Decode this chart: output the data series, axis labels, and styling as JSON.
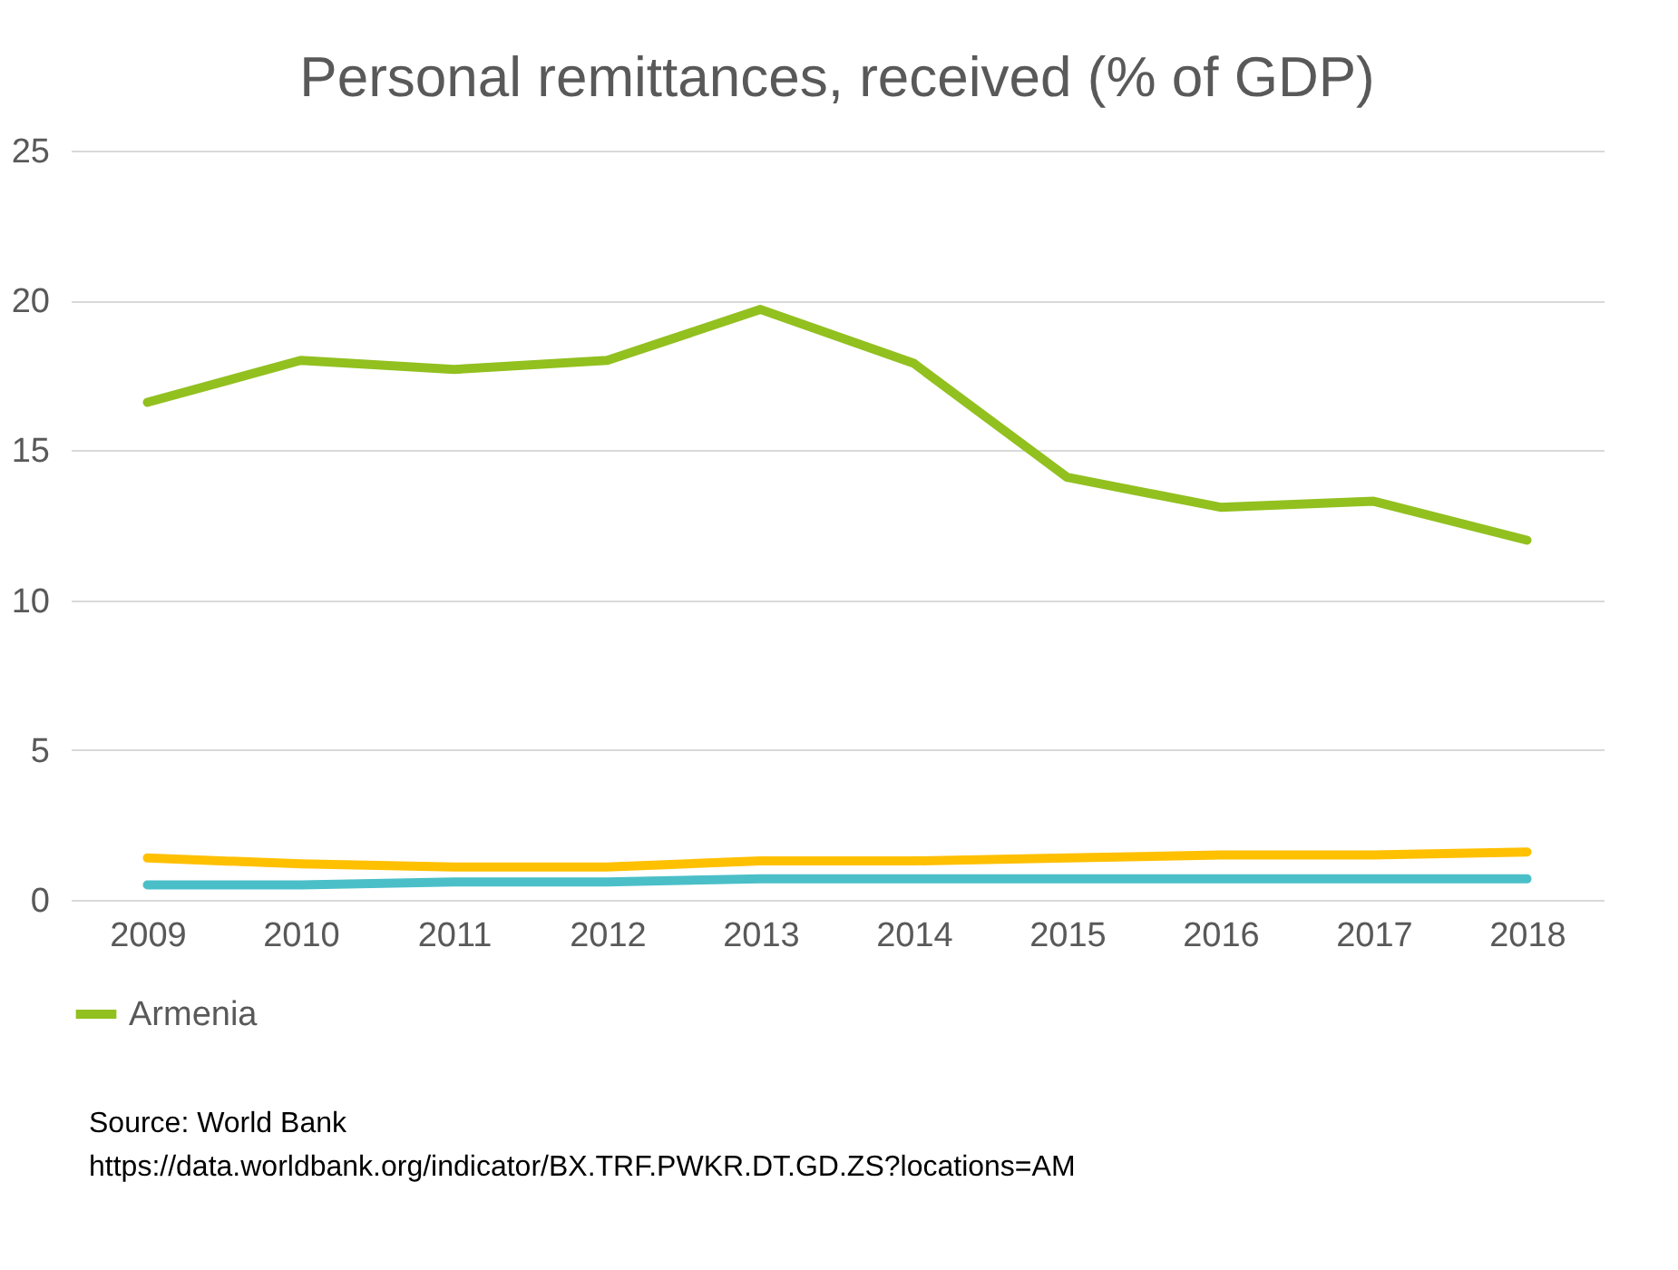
{
  "chart_data": {
    "type": "line",
    "title": "Personal remittances, received (% of GDP)",
    "categories": [
      "2009",
      "2010",
      "2011",
      "2012",
      "2013",
      "2014",
      "2015",
      "2016",
      "2017",
      "2018"
    ],
    "series": [
      {
        "name": "Armenia",
        "color": "#92c01f",
        "values": [
          16.6,
          18.0,
          17.7,
          18.0,
          19.7,
          17.9,
          14.1,
          13.1,
          13.3,
          12.0
        ]
      },
      {
        "color": "#ffc000",
        "values": [
          1.4,
          1.2,
          1.1,
          1.1,
          1.3,
          1.3,
          1.4,
          1.5,
          1.5,
          1.6
        ]
      },
      {
        "color": "#4bbfc8",
        "values": [
          0.5,
          0.5,
          0.6,
          0.6,
          0.7,
          0.7,
          0.7,
          0.7,
          0.7,
          0.7
        ]
      }
    ],
    "ylim": [
      0,
      25
    ],
    "yticks": [
      0,
      5,
      10,
      15,
      20,
      25
    ],
    "grid": "y",
    "legend": "bottom",
    "marker": "none",
    "line_style": "solid",
    "annotations": [
      "Source: World Bank",
      "https://data.worldbank.org/indicator/BX.TRF.PWKR.DT.GD.ZS?locations=AM"
    ]
  }
}
